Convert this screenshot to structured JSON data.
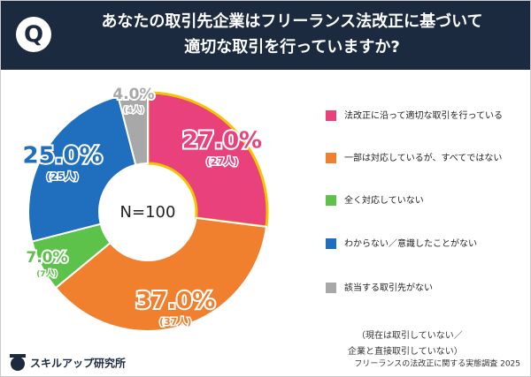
{
  "chart_data": {
    "type": "donut",
    "title_lines": [
      "あなたの取引先企業はフリーランス法改正に基づいて",
      "適切な取引を行っていますか?"
    ],
    "center_label": "N=100",
    "categories": [
      "法改正に沿って適切な取引を行っている",
      "一部は対応しているが、すべてではない",
      "全く対応していない",
      "わからない／意識したことがない",
      "該当する取引先がない"
    ],
    "category_note_lines": [
      "（現在は取引していない／",
      "企業と直接取引していない）"
    ],
    "values": [
      27,
      37,
      7,
      25,
      4
    ],
    "value_labels": [
      "27.0%",
      "37.0%",
      "7.0%",
      "25.0%",
      "4.0%"
    ],
    "count_labels": [
      "(27人)",
      "(37人)",
      "(7人)",
      "(25人)",
      "(4人)"
    ],
    "colors": [
      "#e8417c",
      "#f07f2e",
      "#5cc24a",
      "#1f6fbe",
      "#a8a8a8"
    ],
    "source": "フリーランスの法改正に関する実態調査 2025",
    "brand": "スキルアップ研究所"
  }
}
